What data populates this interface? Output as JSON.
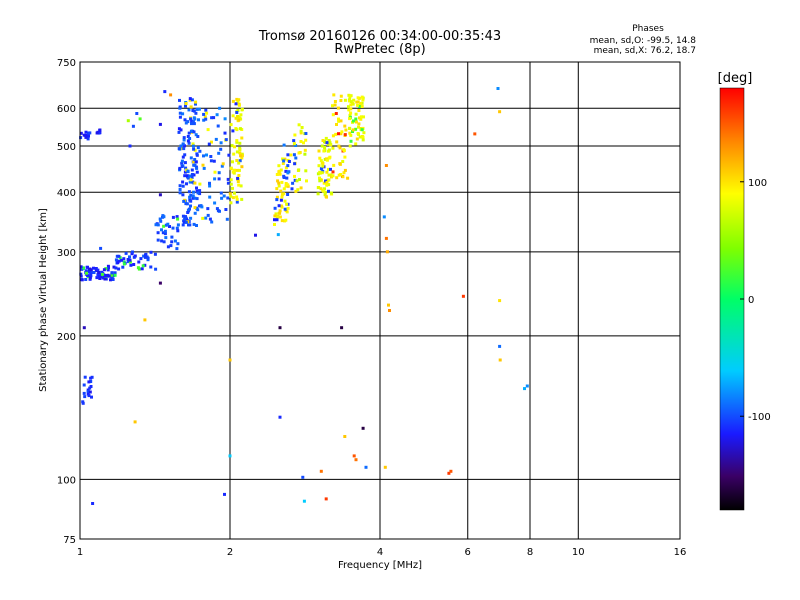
{
  "chart_data": {
    "type": "scatter",
    "title": "Tromsø 20160126 00:34:00-00:35:43",
    "subtitle": "RwPretec (8p)",
    "xlabel": "Frequency [MHz]",
    "ylabel": "Stationary phase Virtual Height [km]",
    "x_scale": "log",
    "y_scale": "log",
    "xlim": [
      1,
      16
    ],
    "ylim": [
      75,
      750
    ],
    "x_ticks": [
      1,
      2,
      4,
      6,
      8,
      10,
      16
    ],
    "y_ticks": [
      75,
      100,
      200,
      300,
      400,
      500,
      600,
      750
    ],
    "grid": true,
    "colorbar": {
      "label": "[deg]",
      "range": [
        -180,
        180
      ],
      "ticks": [
        -100,
        0,
        100
      ]
    },
    "stats": {
      "heading": "Phases",
      "line_o": "mean, sd,O: -99.5, 14.8",
      "line_x": "mean, sd,X: 76.2, 18.7"
    },
    "clusters": [
      {
        "x_range": [
          1.0,
          1.18
        ],
        "y_range": [
          262,
          280
        ],
        "n": 70,
        "phase": -110,
        "spread": 12,
        "minor": "green"
      },
      {
        "x_range": [
          1.18,
          1.42
        ],
        "y_range": [
          275,
          300
        ],
        "n": 45,
        "phase": -105,
        "spread": 12,
        "minor": "green"
      },
      {
        "x_range": [
          1.42,
          1.58
        ],
        "y_range": [
          300,
          360
        ],
        "n": 35,
        "phase": -100,
        "spread": 12,
        "minor": "green"
      },
      {
        "x_range": [
          1.58,
          1.72
        ],
        "y_range": [
          340,
          640
        ],
        "n": 150,
        "phase": -100,
        "spread": 14,
        "minor": "yellow"
      },
      {
        "x_range": [
          1.72,
          2.0
        ],
        "y_range": [
          340,
          600
        ],
        "n": 70,
        "phase": -95,
        "spread": 15,
        "minor": "yellow"
      },
      {
        "x_range": [
          2.0,
          2.12
        ],
        "y_range": [
          380,
          630
        ],
        "n": 75,
        "phase": 90,
        "spread": 18,
        "minor": "blue"
      },
      {
        "x_range": [
          2.45,
          2.62
        ],
        "y_range": [
          340,
          470
        ],
        "n": 55,
        "phase": 95,
        "spread": 15,
        "minor": "blue"
      },
      {
        "x_range": [
          2.55,
          2.72
        ],
        "y_range": [
          400,
          520
        ],
        "n": 20,
        "phase": -95,
        "spread": 15,
        "minor": "yellow"
      },
      {
        "x_range": [
          2.68,
          2.85
        ],
        "y_range": [
          400,
          560
        ],
        "n": 25,
        "phase": 85,
        "spread": 20,
        "minor": "blue"
      },
      {
        "x_range": [
          3.0,
          3.2
        ],
        "y_range": [
          390,
          520
        ],
        "n": 70,
        "phase": 85,
        "spread": 18,
        "minor": "blue"
      },
      {
        "x_range": [
          3.2,
          3.45
        ],
        "y_range": [
          420,
          640
        ],
        "n": 45,
        "phase": 95,
        "spread": 15,
        "minor": "red"
      },
      {
        "x_range": [
          3.45,
          3.72
        ],
        "y_range": [
          500,
          640
        ],
        "n": 65,
        "phase": 90,
        "spread": 15,
        "minor": "green"
      },
      {
        "x_range": [
          1.0,
          1.06
        ],
        "y_range": [
          515,
          535
        ],
        "n": 10,
        "phase": -110,
        "spread": 10,
        "minor": "blue"
      },
      {
        "x_range": [
          1.06,
          1.12
        ],
        "y_range": [
          530,
          545
        ],
        "n": 7,
        "phase": -110,
        "spread": 10,
        "minor": "blue"
      },
      {
        "x_range": [
          1.0,
          1.06
        ],
        "y_range": [
          143,
          165
        ],
        "n": 18,
        "phase": -110,
        "spread": 10,
        "minor": "blue"
      }
    ],
    "points": [
      {
        "x": 1.05,
        "y": 268,
        "phase": -110
      },
      {
        "x": 1.1,
        "y": 305,
        "phase": -100
      },
      {
        "x": 1.25,
        "y": 565,
        "phase": 60
      },
      {
        "x": 1.28,
        "y": 550,
        "phase": -100
      },
      {
        "x": 1.3,
        "y": 585,
        "phase": -100
      },
      {
        "x": 1.32,
        "y": 570,
        "phase": 30
      },
      {
        "x": 1.26,
        "y": 500,
        "phase": -110
      },
      {
        "x": 1.48,
        "y": 650,
        "phase": -110
      },
      {
        "x": 1.52,
        "y": 640,
        "phase": 130
      },
      {
        "x": 1.45,
        "y": 555,
        "phase": -120
      },
      {
        "x": 1.45,
        "y": 395,
        "phase": -130
      },
      {
        "x": 1.45,
        "y": 258,
        "phase": -150
      },
      {
        "x": 1.35,
        "y": 216,
        "phase": 110
      },
      {
        "x": 1.02,
        "y": 208,
        "phase": -130
      },
      {
        "x": 1.06,
        "y": 89,
        "phase": -110
      },
      {
        "x": 1.29,
        "y": 132,
        "phase": 110
      },
      {
        "x": 1.95,
        "y": 93,
        "phase": -110
      },
      {
        "x": 2.0,
        "y": 112,
        "phase": -60
      },
      {
        "x": 2.0,
        "y": 178,
        "phase": 110
      },
      {
        "x": 2.25,
        "y": 325,
        "phase": -120
      },
      {
        "x": 2.5,
        "y": 326,
        "phase": -70
      },
      {
        "x": 2.52,
        "y": 208,
        "phase": -160
      },
      {
        "x": 2.52,
        "y": 135,
        "phase": -110
      },
      {
        "x": 2.8,
        "y": 101,
        "phase": -100
      },
      {
        "x": 2.82,
        "y": 90,
        "phase": -60
      },
      {
        "x": 3.05,
        "y": 104,
        "phase": 140
      },
      {
        "x": 3.12,
        "y": 91,
        "phase": 160
      },
      {
        "x": 3.35,
        "y": 208,
        "phase": -160
      },
      {
        "x": 3.4,
        "y": 123,
        "phase": 110
      },
      {
        "x": 3.55,
        "y": 112,
        "phase": 150
      },
      {
        "x": 3.58,
        "y": 110,
        "phase": 140
      },
      {
        "x": 3.7,
        "y": 128,
        "phase": -160
      },
      {
        "x": 3.75,
        "y": 106,
        "phase": -90
      },
      {
        "x": 4.1,
        "y": 106,
        "phase": 110
      },
      {
        "x": 4.08,
        "y": 355,
        "phase": -80
      },
      {
        "x": 4.12,
        "y": 455,
        "phase": 130
      },
      {
        "x": 4.12,
        "y": 320,
        "phase": 140
      },
      {
        "x": 4.14,
        "y": 300,
        "phase": 120
      },
      {
        "x": 4.16,
        "y": 232,
        "phase": 110
      },
      {
        "x": 4.18,
        "y": 226,
        "phase": 130
      },
      {
        "x": 5.5,
        "y": 103,
        "phase": 160
      },
      {
        "x": 5.55,
        "y": 104,
        "phase": 150
      },
      {
        "x": 5.88,
        "y": 242,
        "phase": 160
      },
      {
        "x": 6.2,
        "y": 530,
        "phase": 150
      },
      {
        "x": 6.9,
        "y": 660,
        "phase": -80
      },
      {
        "x": 6.95,
        "y": 590,
        "phase": 110
      },
      {
        "x": 6.95,
        "y": 237,
        "phase": 100
      },
      {
        "x": 6.95,
        "y": 190,
        "phase": -90
      },
      {
        "x": 6.97,
        "y": 178,
        "phase": 110
      },
      {
        "x": 7.8,
        "y": 155,
        "phase": -70
      },
      {
        "x": 7.9,
        "y": 157,
        "phase": -80
      }
    ]
  }
}
